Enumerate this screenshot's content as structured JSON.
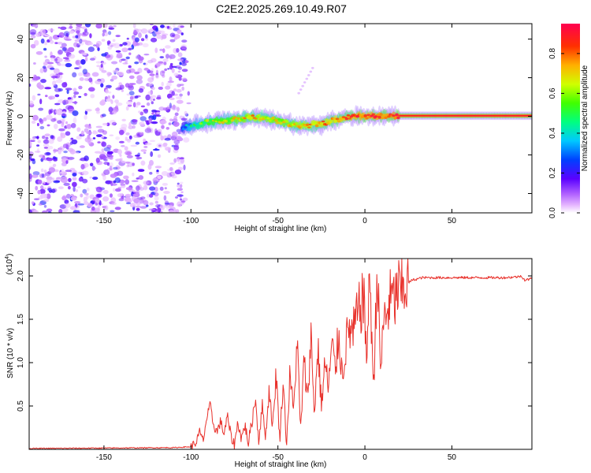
{
  "title": "C2E2.2025.269.10.49.R07",
  "colors": {
    "snr_line": "#e8302a",
    "axis": "#000000",
    "background": "#ffffff"
  },
  "chart_data": [
    {
      "type": "heatmap",
      "name": "spectrogram",
      "xlabel": "Height of straight line (km)",
      "ylabel": "Frequency (Hz)",
      "xlim": [
        -193,
        96
      ],
      "ylim": [
        -50,
        48
      ],
      "x_ticks": [
        -150,
        -100,
        -50,
        0,
        50
      ],
      "y_ticks": [
        -40,
        -20,
        0,
        20,
        40
      ],
      "colorbar": {
        "label": "Normalized spectral amplitude",
        "range": [
          0.0,
          0.95
        ],
        "ticks": [
          0.0,
          0.2,
          0.4,
          0.6,
          0.8
        ],
        "colors": [
          "#ffffff",
          "#cc88ff",
          "#8a2be2",
          "#4b00ff",
          "#0040ff",
          "#00d0ff",
          "#00ff60",
          "#a0ff00",
          "#ffe000",
          "#ff8000",
          "#ff2000",
          "#ff0040"
        ]
      },
      "noise_region_x": [
        -193,
        -103
      ],
      "ridge": {
        "x": [
          -105,
          -100,
          -95,
          -90,
          -85,
          -80,
          -75,
          -70,
          -65,
          -60,
          -55,
          -50,
          -45,
          -40,
          -35,
          -30,
          -25,
          -20,
          -15,
          -10,
          -5,
          0,
          5,
          10,
          15,
          20,
          30,
          40,
          50,
          60,
          70,
          80,
          96
        ],
        "y": [
          -6,
          -5,
          -4,
          -3,
          -2.5,
          -2,
          -1.5,
          -1,
          -0.5,
          -0.5,
          -1.5,
          -2.5,
          -3.5,
          -4.5,
          -5,
          -4.5,
          -4,
          -2.5,
          -1.5,
          -0.5,
          0,
          0,
          0,
          0,
          0.2,
          0.3,
          0.3,
          0.3,
          0.3,
          0.3,
          0.3,
          0.3,
          0.3
        ],
        "amplitude": [
          0.3,
          0.45,
          0.55,
          0.6,
          0.65,
          0.65,
          0.7,
          0.7,
          0.75,
          0.75,
          0.7,
          0.7,
          0.7,
          0.72,
          0.75,
          0.78,
          0.8,
          0.8,
          0.82,
          0.85,
          0.88,
          0.9,
          0.9,
          0.9,
          0.92,
          0.93,
          0.94,
          0.94,
          0.95,
          0.95,
          0.95,
          0.95,
          0.95
        ]
      },
      "streak": {
        "x": [
          -38,
          -30
        ],
        "y": [
          12,
          25
        ]
      }
    },
    {
      "type": "line",
      "name": "snr",
      "xlabel": "Height of straight line (km)",
      "ylabel": "SNR (10 * v/v)",
      "y_multiplier_label": "(x10",
      "y_multiplier_exp": "4",
      "xlim": [
        -193,
        96
      ],
      "ylim": [
        0,
        2.2
      ],
      "x_ticks": [
        -150,
        -100,
        -50,
        0,
        50
      ],
      "y_ticks": [
        0.5,
        1.0,
        1.5,
        2.0
      ],
      "y_tick_labels": [
        "0.5",
        "1.0",
        "1.5",
        "2.0"
      ],
      "series": [
        {
          "name": "SNR",
          "x": [
            -193,
            -110,
            -100,
            -97,
            -95,
            -93,
            -91,
            -89,
            -87,
            -85,
            -83,
            -81,
            -79,
            -77,
            -75,
            -73,
            -71,
            -69,
            -67,
            -65,
            -63,
            -61,
            -59,
            -57,
            -55,
            -53,
            -51,
            -49,
            -47,
            -45,
            -43,
            -41,
            -39,
            -37,
            -35,
            -33,
            -31,
            -29,
            -27,
            -25,
            -23,
            -21,
            -19,
            -17,
            -15,
            -13,
            -11,
            -9,
            -7,
            -5,
            -3,
            -1,
            1,
            3,
            5,
            7,
            9,
            11,
            13,
            15,
            17,
            19,
            21,
            23,
            25,
            27,
            29,
            31,
            33,
            35,
            40,
            50,
            60,
            70,
            80,
            88,
            90,
            92,
            96
          ],
          "y": [
            0.01,
            0.02,
            0.03,
            0.08,
            0.2,
            0.1,
            0.35,
            0.5,
            0.28,
            0.2,
            0.32,
            0.18,
            0.38,
            0.15,
            0.05,
            0.32,
            0.12,
            0.28,
            0.08,
            0.3,
            0.6,
            0.1,
            0.5,
            0.15,
            0.7,
            0.25,
            0.9,
            0.1,
            0.8,
            0.05,
            0.9,
            0.4,
            1.3,
            0.2,
            1.0,
            0.6,
            1.3,
            0.4,
            1.2,
            0.5,
            1.0,
            0.7,
            1.2,
            0.9,
            1.35,
            0.85,
            1.2,
            1.4,
            1.3,
            1.5,
            1.6,
            1.8,
            1.1,
            2.0,
            0.65,
            2.15,
            0.9,
            1.5,
            1.6,
            1.75,
            1.7,
            1.85,
            1.8,
            1.9,
            1.92,
            1.95,
            1.96,
            1.97,
            1.98,
            1.98,
            1.98,
            1.98,
            1.98,
            1.98,
            1.98,
            1.99,
            2.0,
            1.95,
            1.97
          ]
        }
      ]
    }
  ]
}
